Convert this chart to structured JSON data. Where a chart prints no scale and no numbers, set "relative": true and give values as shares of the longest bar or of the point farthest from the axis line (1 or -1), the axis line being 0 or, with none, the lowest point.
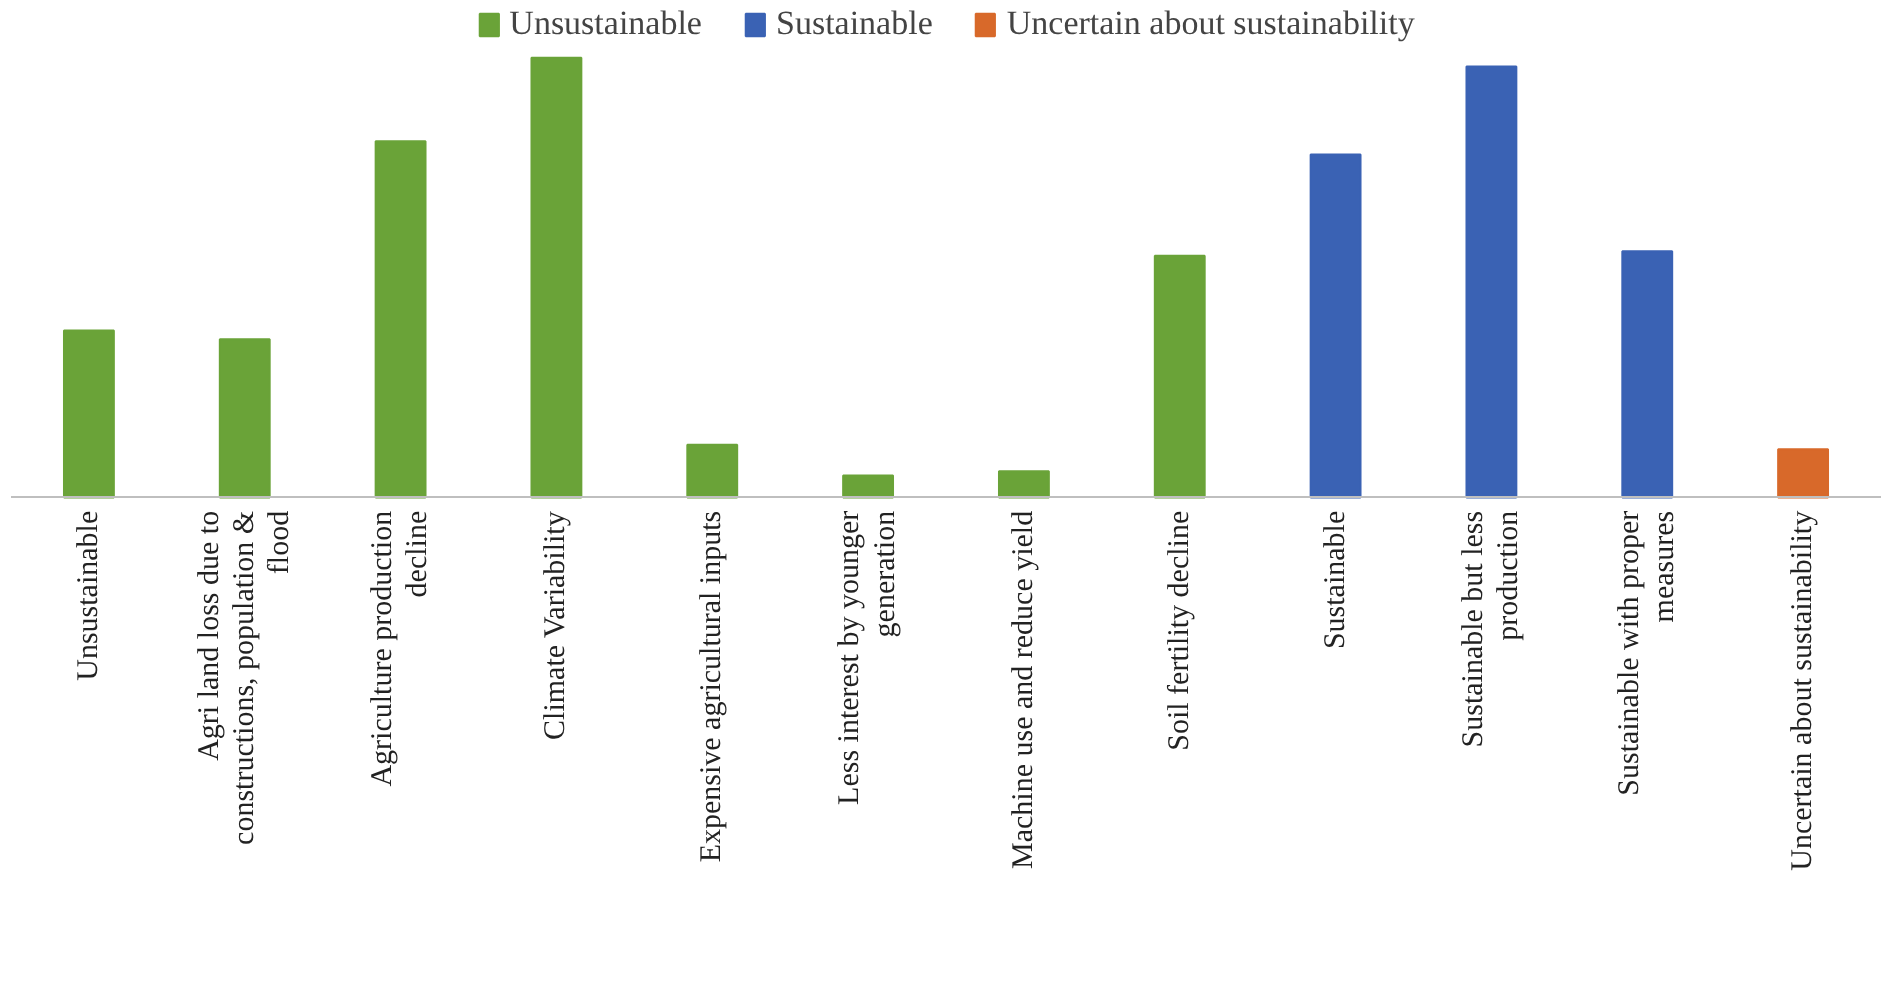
{
  "chart_data": {
    "type": "bar",
    "relative": true,
    "legend": "top",
    "categories": [
      "Unsustainable",
      "Agri land loss due to\nconstructions, population &\nflood",
      "Agriculture production\ndecline",
      "Climate Variability",
      "Expensive agricultural inputs",
      "Less interest by younger\ngeneration",
      "Machine use and reduce yield",
      "Soil fertility decline",
      "Sustainable",
      "Sustainable but less\nproduction",
      "Sustainable with proper\nmeasures",
      "Uncertain about sustainability"
    ],
    "series": [
      {
        "name": "Unsustainable",
        "color": "#6aa338",
        "values": [
          0.38,
          0.36,
          0.81,
          1,
          0.12,
          0.05,
          0.06,
          0.55,
          null,
          null,
          null,
          null
        ]
      },
      {
        "name": "Sustainable",
        "color": "#3a62b4",
        "values": [
          null,
          null,
          null,
          null,
          null,
          null,
          null,
          null,
          0.78,
          0.98,
          0.56,
          null
        ]
      },
      {
        "name": "Uncertain about sustainability",
        "color": "#d8692a",
        "values": [
          null,
          null,
          null,
          null,
          null,
          null,
          null,
          null,
          null,
          null,
          null,
          0.11
        ]
      }
    ]
  }
}
